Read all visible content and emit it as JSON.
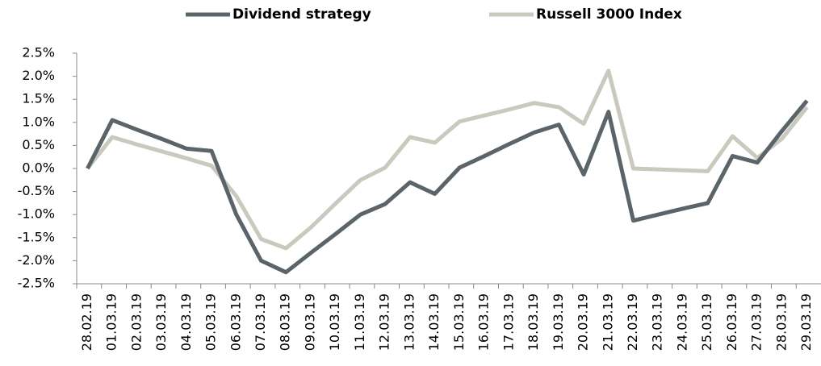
{
  "chart_data": {
    "type": "line",
    "categories": [
      "28.02.19",
      "01.03.19",
      "02.03.19",
      "03.03.19",
      "04.03.19",
      "05.03.19",
      "06.03.19",
      "07.03.19",
      "08.03.19",
      "09.03.19",
      "10.03.19",
      "11.03.19",
      "12.03.19",
      "13.03.19",
      "14.03.19",
      "15.03.19",
      "16.03.19",
      "17.03.19",
      "18.03.19",
      "19.03.19",
      "20.03.19",
      "21.03.19",
      "22.03.19",
      "23.03.19",
      "24.03.19",
      "25.03.19",
      "26.03.19",
      "27.03.19",
      "28.03.19",
      "29.03.19"
    ],
    "series": [
      {
        "name": "Dividend strategy",
        "color": "#5b6469",
        "values": [
          0,
          1.05,
          0.84,
          0.64,
          0.43,
          0.38,
          -1.0,
          -2.0,
          -2.25,
          -1.83,
          -1.42,
          -1.0,
          -0.77,
          -0.3,
          -0.55,
          0.02,
          0.27,
          0.53,
          0.78,
          0.95,
          -0.13,
          1.23,
          -1.13,
          -1.0,
          -0.87,
          -0.75,
          0.27,
          0.13,
          0.82,
          1.47
        ]
      },
      {
        "name": "Russell 3000 Index",
        "color": "#c9c9be",
        "values": [
          0,
          0.68,
          0.52,
          0.37,
          0.22,
          0.06,
          -0.6,
          -1.53,
          -1.73,
          -1.28,
          -0.76,
          -0.25,
          0.02,
          0.68,
          0.56,
          1.02,
          1.15,
          1.28,
          1.42,
          1.33,
          0.97,
          2.12,
          0.0,
          -0.02,
          -0.04,
          -0.06,
          0.7,
          0.23,
          0.65,
          1.33
        ]
      }
    ],
    "ylim": [
      -2.5,
      2.5
    ],
    "yticks": [
      {
        "value": -2.5,
        "label": "-2.5%"
      },
      {
        "value": -2.0,
        "label": "-2.0%"
      },
      {
        "value": -1.5,
        "label": "-1.5%"
      },
      {
        "value": -1.0,
        "label": "-1.0%"
      },
      {
        "value": -0.5,
        "label": "-0.5%"
      },
      {
        "value": 0,
        "label": "0.0%"
      },
      {
        "value": 0.5,
        "label": "0.5%"
      },
      {
        "value": 1.0,
        "label": "1.0%"
      },
      {
        "value": 1.5,
        "label": "1.5%"
      },
      {
        "value": 2.0,
        "label": "2.0%"
      },
      {
        "value": 2.5,
        "label": "2.5%"
      }
    ],
    "grid": false,
    "legend": "top"
  }
}
